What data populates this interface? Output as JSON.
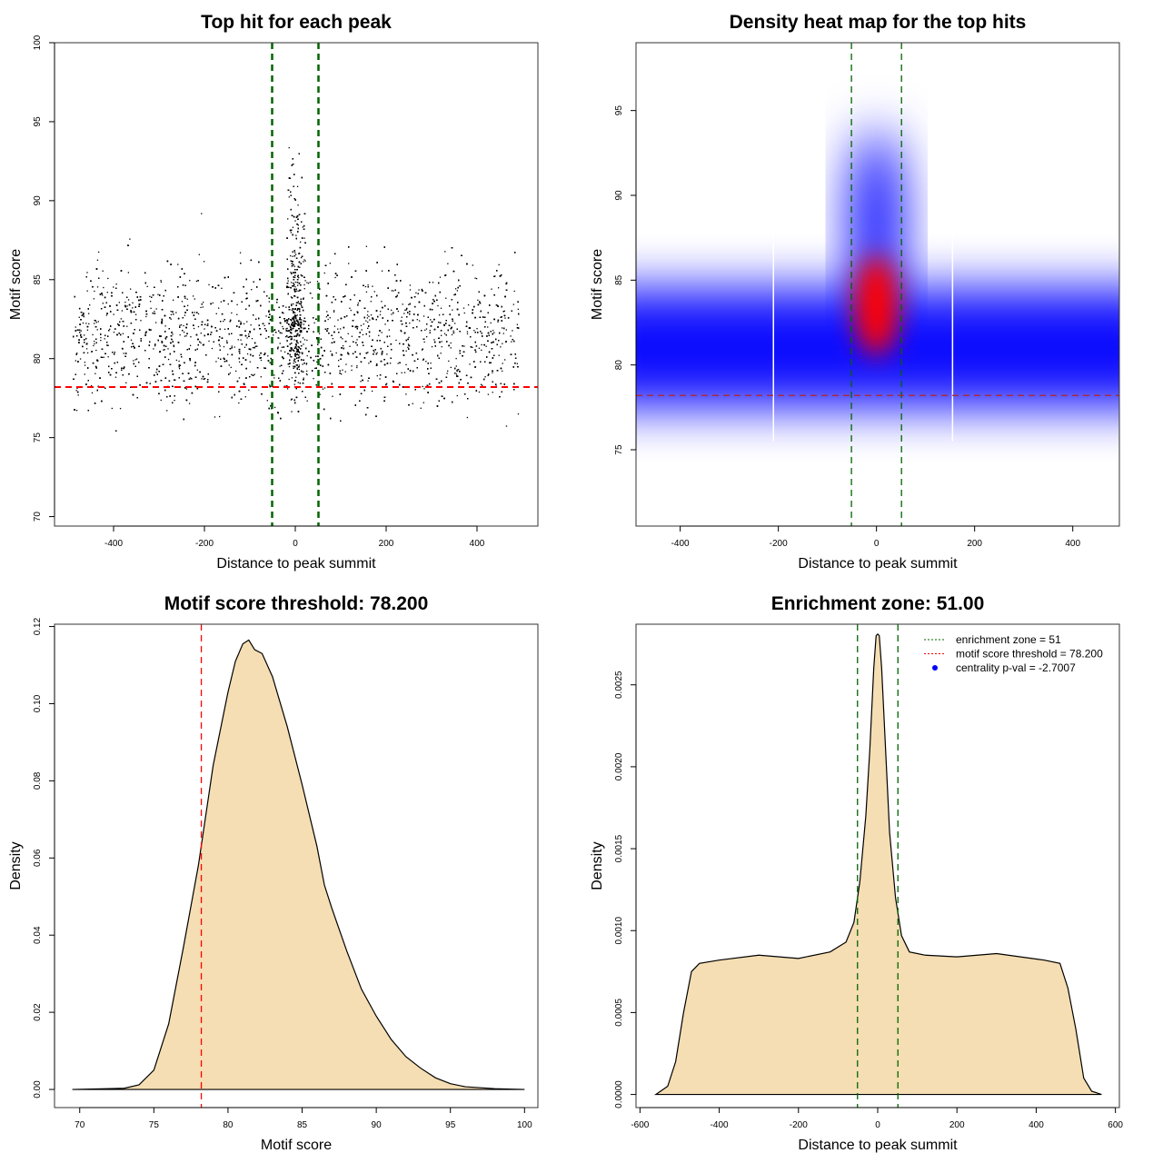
{
  "chart_data": [
    {
      "type": "scatter",
      "title": "Top hit for each peak",
      "xlabel": "Distance to peak summit",
      "ylabel": "Motif score",
      "xlim": [
        -530,
        534
      ],
      "ylim": [
        69.4,
        100
      ],
      "xticks": [
        -400,
        -200,
        0,
        200,
        400
      ],
      "yticks": [
        70,
        75,
        80,
        85,
        90,
        95,
        100
      ],
      "vlines": [
        -51,
        51
      ],
      "vline_color": "#006400",
      "hline": 78.2,
      "hline_color": "#ff0000",
      "point_color": "#000000"
    },
    {
      "type": "heatmap",
      "title": "Density heat map for the top hits",
      "xlabel": "Distance to peak summit",
      "ylabel": "Motif score",
      "xlim": [
        -490,
        495
      ],
      "ylim": [
        70.5,
        99
      ],
      "xticks": [
        -400,
        -200,
        0,
        200,
        400
      ],
      "yticks": [
        75,
        80,
        85,
        90,
        95
      ],
      "vlines": [
        -51,
        51
      ],
      "vline_color": "#006400",
      "hline": 78.2,
      "hline_color": "#b22222",
      "colors": [
        "#ffffff",
        "#0000ff",
        "#ff0000"
      ]
    },
    {
      "type": "area",
      "title": "Motif score threshold: 78.200",
      "xlabel": "Motif score",
      "ylabel": "Density",
      "xlim": [
        68.3,
        100.9
      ],
      "ylim": [
        -0.0047,
        0.1206
      ],
      "xticks": [
        70,
        75,
        80,
        85,
        90,
        95,
        100
      ],
      "yticks": [
        0,
        0.02,
        0.04,
        0.06,
        0.08,
        0.1,
        0.12
      ],
      "ytick_labels": [
        "0.00",
        "0.02",
        "0.04",
        "0.06",
        "0.08",
        "0.10",
        "0.12"
      ],
      "vline": 78.2,
      "vline_color": "#ff0000",
      "fill": "#f5deb3",
      "x": [
        69.5,
        73,
        74,
        75,
        76,
        77,
        78,
        79,
        80,
        80.5,
        81,
        81.4,
        81.8,
        82.3,
        83,
        84,
        85,
        86,
        86.5,
        87,
        88,
        89,
        90,
        91,
        92,
        93,
        94,
        95,
        96,
        98,
        100
      ],
      "y": [
        0,
        0.0003,
        0.0012,
        0.005,
        0.017,
        0.037,
        0.058,
        0.084,
        0.103,
        0.111,
        0.1155,
        0.1165,
        0.114,
        0.113,
        0.107,
        0.094,
        0.079,
        0.063,
        0.053,
        0.047,
        0.036,
        0.026,
        0.019,
        0.013,
        0.0085,
        0.0055,
        0.003,
        0.0015,
        0.0007,
        0.0002,
        0
      ]
    },
    {
      "type": "area",
      "title": "Enrichment zone: 51.00",
      "xlabel": "Distance to peak summit",
      "ylabel": "Density",
      "xlim": [
        -610,
        610
      ],
      "ylim": [
        -8e-05,
        0.00287
      ],
      "xticks": [
        -600,
        -400,
        -200,
        0,
        200,
        400,
        600
      ],
      "yticks": [
        0,
        0.0005,
        0.001,
        0.0015,
        0.002,
        0.0025
      ],
      "ytick_labels": [
        "0.0000",
        "0.0005",
        "0.0010",
        "0.0015",
        "0.0020",
        "0.0025"
      ],
      "vlines": [
        -51,
        51
      ],
      "vline_color": "#006400",
      "fill": "#f5deb3",
      "x": [
        -560,
        -530,
        -510,
        -490,
        -470,
        -450,
        -400,
        -300,
        -200,
        -120,
        -80,
        -60,
        -45,
        -30,
        -20,
        -10,
        -4,
        0,
        4,
        10,
        20,
        30,
        45,
        60,
        80,
        120,
        200,
        300,
        420,
        460,
        480,
        500,
        520,
        540,
        565
      ],
      "y": [
        0,
        5e-05,
        0.0002,
        0.0005,
        0.00075,
        0.0008,
        0.00082,
        0.00085,
        0.00083,
        0.00087,
        0.00093,
        0.00105,
        0.0013,
        0.0017,
        0.0021,
        0.0026,
        0.0028,
        0.00281,
        0.0028,
        0.0026,
        0.0021,
        0.0016,
        0.0012,
        0.00097,
        0.00087,
        0.00085,
        0.00084,
        0.00086,
        0.00082,
        0.0008,
        0.00065,
        0.0004,
        0.0001,
        2e-05,
        0
      ],
      "legend": {
        "placement": "top-right",
        "entries": [
          {
            "label": "enrichment zone = 51",
            "color": "#006400",
            "style": "dotted-line"
          },
          {
            "label": "motif score threshold = 78.200",
            "color": "#ff0000",
            "style": "dotted-line"
          },
          {
            "label": "centrality p-val = -2.7007",
            "color": "#0000ff",
            "style": "point"
          }
        ]
      }
    }
  ]
}
